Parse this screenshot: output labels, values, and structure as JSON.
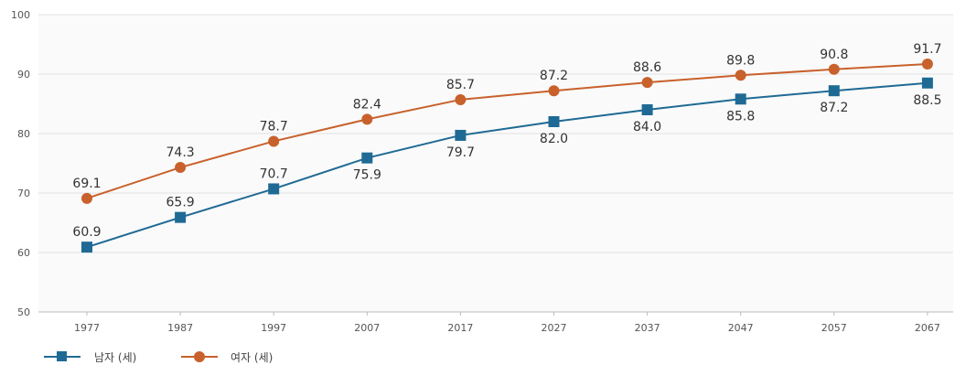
{
  "chart_data": {
    "type": "line",
    "x": [
      "1977",
      "1987",
      "1997",
      "2007",
      "2017",
      "2027",
      "2037",
      "2047",
      "2057",
      "2067"
    ],
    "yticks": [
      "50",
      "60",
      "70",
      "80",
      "90",
      "100"
    ],
    "ylim": [
      50,
      100
    ],
    "grid": true,
    "legend_position": "bottom-left",
    "series": [
      {
        "name": "남자 (세)",
        "color": "#1f6a94",
        "marker": "square",
        "values": [
          60.9,
          65.9,
          70.7,
          75.9,
          79.7,
          82.0,
          84.0,
          85.8,
          87.2,
          88.5
        ],
        "labels": [
          "60.9",
          "65.9",
          "70.7",
          "75.9",
          "79.7",
          "82.0",
          "84.0",
          "85.8",
          "87.2",
          "88.5"
        ],
        "label_side": [
          "above",
          "above",
          "above",
          "below",
          "below",
          "below",
          "below",
          "below",
          "below",
          "below"
        ]
      },
      {
        "name": "여자 (세)",
        "color": "#c8612c",
        "marker": "circle",
        "values": [
          69.1,
          74.3,
          78.7,
          82.4,
          85.7,
          87.2,
          88.6,
          89.8,
          90.8,
          91.7
        ],
        "labels": [
          "69.1",
          "74.3",
          "78.7",
          "82.4",
          "85.7",
          "87.2",
          "88.6",
          "89.8",
          "90.8",
          "91.7"
        ],
        "label_side": [
          "above",
          "above",
          "above",
          "above",
          "above",
          "above",
          "above",
          "above",
          "above",
          "above"
        ]
      }
    ]
  }
}
